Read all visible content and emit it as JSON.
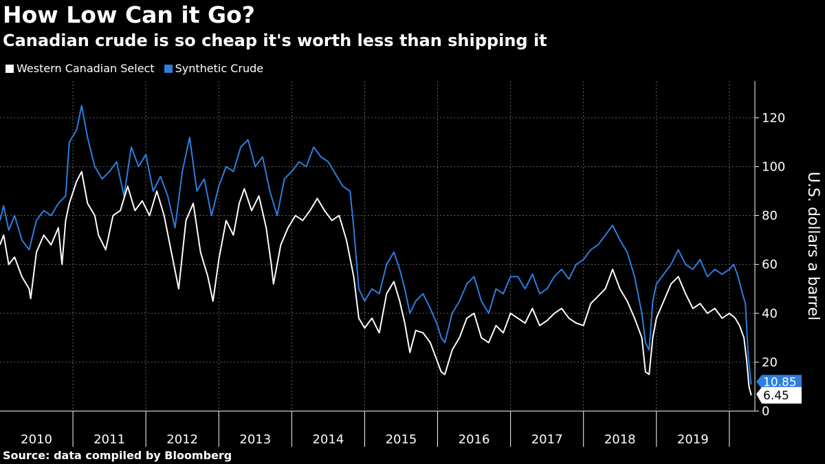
{
  "title": "How Low Can it Go?",
  "subtitle": "Canadian crude is so cheap it's worth less than shipping it",
  "source": "Source: data compiled by Bloomberg",
  "colors": {
    "background": "#000000",
    "wcs": "#ffffff",
    "synthetic": "#2c7fe0"
  },
  "chart_data": {
    "type": "line",
    "ylabel": "U.S. dollars a barrel",
    "ylim": [
      0,
      135
    ],
    "yticks": [
      0,
      20,
      40,
      60,
      80,
      100,
      120
    ],
    "xlim": [
      2010.0,
      2020.35
    ],
    "xticks": [
      "2010",
      "2011",
      "2012",
      "2013",
      "2014",
      "2015",
      "2016",
      "2017",
      "2018",
      "2019"
    ],
    "grid": true,
    "legend_position": "top-left",
    "series": [
      {
        "name": "Western Canadian Select",
        "color": "#ffffff",
        "end_label": "6.45",
        "points": [
          [
            2010.0,
            68
          ],
          [
            2010.05,
            72
          ],
          [
            2010.12,
            60
          ],
          [
            2010.2,
            63
          ],
          [
            2010.3,
            55
          ],
          [
            2010.4,
            50
          ],
          [
            2010.42,
            46
          ],
          [
            2010.5,
            65
          ],
          [
            2010.6,
            72
          ],
          [
            2010.7,
            68
          ],
          [
            2010.8,
            75
          ],
          [
            2010.85,
            60
          ],
          [
            2010.9,
            78
          ],
          [
            2010.95,
            85
          ],
          [
            2011.05,
            94
          ],
          [
            2011.12,
            98
          ],
          [
            2011.2,
            85
          ],
          [
            2011.3,
            80
          ],
          [
            2011.35,
            72
          ],
          [
            2011.45,
            66
          ],
          [
            2011.55,
            80
          ],
          [
            2011.65,
            82
          ],
          [
            2011.75,
            92
          ],
          [
            2011.85,
            82
          ],
          [
            2011.95,
            86
          ],
          [
            2012.05,
            80
          ],
          [
            2012.15,
            90
          ],
          [
            2012.25,
            80
          ],
          [
            2012.35,
            65
          ],
          [
            2012.45,
            50
          ],
          [
            2012.55,
            78
          ],
          [
            2012.65,
            85
          ],
          [
            2012.75,
            65
          ],
          [
            2012.85,
            55
          ],
          [
            2012.92,
            45
          ],
          [
            2013.0,
            62
          ],
          [
            2013.1,
            78
          ],
          [
            2013.2,
            72
          ],
          [
            2013.28,
            85
          ],
          [
            2013.35,
            91
          ],
          [
            2013.45,
            82
          ],
          [
            2013.55,
            88
          ],
          [
            2013.65,
            75
          ],
          [
            2013.72,
            60
          ],
          [
            2013.75,
            52
          ],
          [
            2013.85,
            68
          ],
          [
            2013.95,
            75
          ],
          [
            2014.05,
            80
          ],
          [
            2014.15,
            78
          ],
          [
            2014.25,
            82
          ],
          [
            2014.35,
            87
          ],
          [
            2014.45,
            82
          ],
          [
            2014.55,
            78
          ],
          [
            2014.65,
            80
          ],
          [
            2014.75,
            70
          ],
          [
            2014.85,
            55
          ],
          [
            2014.92,
            38
          ],
          [
            2015.0,
            34
          ],
          [
            2015.1,
            38
          ],
          [
            2015.2,
            32
          ],
          [
            2015.3,
            48
          ],
          [
            2015.4,
            53
          ],
          [
            2015.48,
            45
          ],
          [
            2015.55,
            36
          ],
          [
            2015.62,
            24
          ],
          [
            2015.7,
            33
          ],
          [
            2015.8,
            32
          ],
          [
            2015.9,
            28
          ],
          [
            2015.95,
            24
          ],
          [
            2016.05,
            16
          ],
          [
            2016.1,
            15
          ],
          [
            2016.2,
            25
          ],
          [
            2016.3,
            30
          ],
          [
            2016.4,
            38
          ],
          [
            2016.5,
            40
          ],
          [
            2016.6,
            30
          ],
          [
            2016.7,
            28
          ],
          [
            2016.8,
            35
          ],
          [
            2016.9,
            32
          ],
          [
            2017.0,
            40
          ],
          [
            2017.1,
            38
          ],
          [
            2017.2,
            36
          ],
          [
            2017.3,
            42
          ],
          [
            2017.4,
            35
          ],
          [
            2017.5,
            37
          ],
          [
            2017.6,
            40
          ],
          [
            2017.7,
            42
          ],
          [
            2017.8,
            38
          ],
          [
            2017.9,
            36
          ],
          [
            2018.0,
            35
          ],
          [
            2018.1,
            44
          ],
          [
            2018.2,
            47
          ],
          [
            2018.3,
            50
          ],
          [
            2018.4,
            58
          ],
          [
            2018.5,
            50
          ],
          [
            2018.6,
            45
          ],
          [
            2018.7,
            38
          ],
          [
            2018.8,
            30
          ],
          [
            2018.85,
            16
          ],
          [
            2018.9,
            15
          ],
          [
            2018.95,
            30
          ],
          [
            2019.0,
            38
          ],
          [
            2019.1,
            45
          ],
          [
            2019.2,
            52
          ],
          [
            2019.3,
            55
          ],
          [
            2019.4,
            48
          ],
          [
            2019.5,
            42
          ],
          [
            2019.6,
            44
          ],
          [
            2019.7,
            40
          ],
          [
            2019.8,
            42
          ],
          [
            2019.9,
            38
          ],
          [
            2020.0,
            40
          ],
          [
            2020.08,
            38
          ],
          [
            2020.14,
            35
          ],
          [
            2020.2,
            30
          ],
          [
            2020.24,
            20
          ],
          [
            2020.27,
            10
          ],
          [
            2020.3,
            6.45
          ]
        ]
      },
      {
        "name": "Synthetic Crude",
        "color": "#2c7fe0",
        "end_label": "10.85",
        "points": [
          [
            2010.0,
            78
          ],
          [
            2010.05,
            84
          ],
          [
            2010.12,
            74
          ],
          [
            2010.2,
            80
          ],
          [
            2010.3,
            70
          ],
          [
            2010.4,
            66
          ],
          [
            2010.5,
            78
          ],
          [
            2010.6,
            82
          ],
          [
            2010.7,
            80
          ],
          [
            2010.8,
            85
          ],
          [
            2010.9,
            88
          ],
          [
            2010.95,
            110
          ],
          [
            2011.05,
            115
          ],
          [
            2011.12,
            125
          ],
          [
            2011.2,
            112
          ],
          [
            2011.3,
            100
          ],
          [
            2011.4,
            95
          ],
          [
            2011.5,
            98
          ],
          [
            2011.6,
            102
          ],
          [
            2011.7,
            88
          ],
          [
            2011.8,
            108
          ],
          [
            2011.9,
            100
          ],
          [
            2012.0,
            105
          ],
          [
            2012.1,
            90
          ],
          [
            2012.2,
            96
          ],
          [
            2012.3,
            88
          ],
          [
            2012.4,
            75
          ],
          [
            2012.5,
            98
          ],
          [
            2012.6,
            112
          ],
          [
            2012.7,
            90
          ],
          [
            2012.8,
            95
          ],
          [
            2012.9,
            80
          ],
          [
            2013.0,
            92
          ],
          [
            2013.1,
            100
          ],
          [
            2013.2,
            98
          ],
          [
            2013.3,
            108
          ],
          [
            2013.4,
            111
          ],
          [
            2013.5,
            100
          ],
          [
            2013.6,
            104
          ],
          [
            2013.7,
            90
          ],
          [
            2013.8,
            80
          ],
          [
            2013.9,
            95
          ],
          [
            2014.0,
            98
          ],
          [
            2014.1,
            102
          ],
          [
            2014.2,
            100
          ],
          [
            2014.3,
            108
          ],
          [
            2014.4,
            104
          ],
          [
            2014.5,
            102
          ],
          [
            2014.6,
            97
          ],
          [
            2014.7,
            92
          ],
          [
            2014.8,
            90
          ],
          [
            2014.85,
            75
          ],
          [
            2014.92,
            50
          ],
          [
            2015.0,
            45
          ],
          [
            2015.1,
            50
          ],
          [
            2015.2,
            48
          ],
          [
            2015.3,
            60
          ],
          [
            2015.4,
            65
          ],
          [
            2015.48,
            58
          ],
          [
            2015.55,
            50
          ],
          [
            2015.62,
            40
          ],
          [
            2015.7,
            45
          ],
          [
            2015.8,
            48
          ],
          [
            2015.9,
            42
          ],
          [
            2016.0,
            35
          ],
          [
            2016.05,
            30
          ],
          [
            2016.1,
            28
          ],
          [
            2016.2,
            40
          ],
          [
            2016.3,
            45
          ],
          [
            2016.4,
            52
          ],
          [
            2016.5,
            55
          ],
          [
            2016.6,
            45
          ],
          [
            2016.7,
            40
          ],
          [
            2016.8,
            50
          ],
          [
            2016.9,
            48
          ],
          [
            2017.0,
            55
          ],
          [
            2017.1,
            55
          ],
          [
            2017.2,
            50
          ],
          [
            2017.3,
            56
          ],
          [
            2017.4,
            48
          ],
          [
            2017.5,
            50
          ],
          [
            2017.6,
            55
          ],
          [
            2017.7,
            58
          ],
          [
            2017.8,
            54
          ],
          [
            2017.9,
            60
          ],
          [
            2018.0,
            62
          ],
          [
            2018.1,
            66
          ],
          [
            2018.2,
            68
          ],
          [
            2018.3,
            72
          ],
          [
            2018.4,
            76
          ],
          [
            2018.5,
            70
          ],
          [
            2018.6,
            65
          ],
          [
            2018.7,
            55
          ],
          [
            2018.8,
            40
          ],
          [
            2018.85,
            28
          ],
          [
            2018.9,
            25
          ],
          [
            2018.95,
            45
          ],
          [
            2019.0,
            52
          ],
          [
            2019.1,
            56
          ],
          [
            2019.2,
            60
          ],
          [
            2019.3,
            66
          ],
          [
            2019.4,
            60
          ],
          [
            2019.5,
            58
          ],
          [
            2019.6,
            62
          ],
          [
            2019.7,
            55
          ],
          [
            2019.8,
            58
          ],
          [
            2019.9,
            56
          ],
          [
            2020.0,
            58
          ],
          [
            2020.06,
            60
          ],
          [
            2020.12,
            55
          ],
          [
            2020.18,
            48
          ],
          [
            2020.22,
            44
          ],
          [
            2020.26,
            22
          ],
          [
            2020.3,
            10.85
          ]
        ]
      }
    ]
  }
}
